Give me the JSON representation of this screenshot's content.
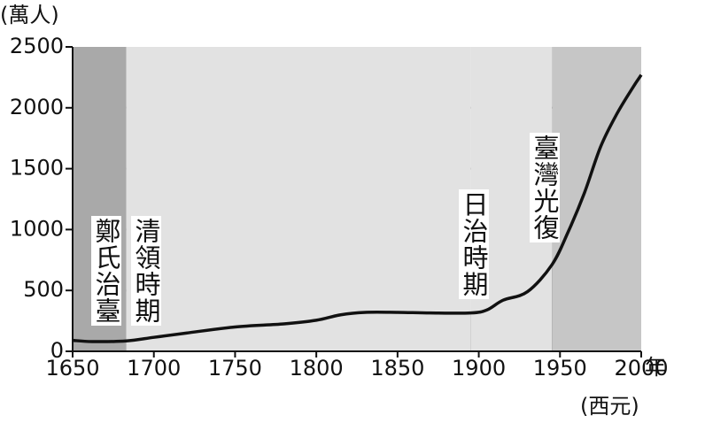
{
  "chart_data": {
    "type": "area",
    "y_unit": "(萬人)",
    "x_unit": "年",
    "x_unit_note": "(西元)",
    "x": [
      1650,
      1662,
      1683,
      1700,
      1720,
      1750,
      1780,
      1800,
      1815,
      1830,
      1850,
      1870,
      1895,
      1905,
      1915,
      1930,
      1945,
      1955,
      1965,
      1975,
      1985,
      1995,
      2000
    ],
    "values": [
      90,
      80,
      85,
      115,
      150,
      200,
      225,
      255,
      300,
      320,
      320,
      315,
      315,
      340,
      420,
      490,
      710,
      980,
      1300,
      1680,
      1950,
      2170,
      2270
    ],
    "xlim": [
      1650,
      2000
    ],
    "xticks": [
      1650,
      1700,
      1750,
      1800,
      1850,
      1900,
      1950,
      2000
    ],
    "ylim": [
      0,
      2500
    ],
    "yticks": [
      0,
      500,
      1000,
      1500,
      2000,
      2500
    ],
    "grid": true,
    "boundaries": [
      1683,
      1895,
      1945
    ],
    "periods": [
      {
        "label": "鄭氏治臺",
        "color": "#a9a9a9"
      },
      {
        "label": "清領時期",
        "color": "#e2e2e2"
      },
      {
        "label": "日治時期",
        "color": "#e2e2e2"
      },
      {
        "label": "臺灣光復",
        "color": "#c6c6c6"
      }
    ]
  }
}
